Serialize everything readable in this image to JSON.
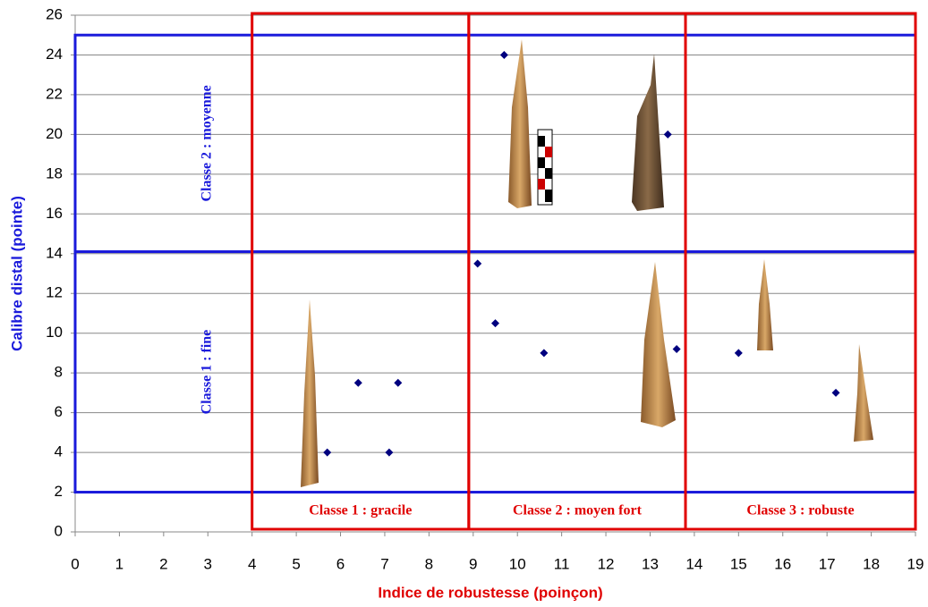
{
  "chart_data": {
    "type": "scatter",
    "xlabel": "Indice de robustesse (poinçon)",
    "ylabel": "Calibre distal (pointe)",
    "x": [
      9.7,
      13.4,
      9.1,
      9.5,
      10.6,
      13.6,
      15,
      17.2,
      5.7,
      6.4,
      7.1,
      7.3
    ],
    "values": [
      24,
      20,
      13.5,
      10.5,
      9,
      9.2,
      9,
      7,
      4,
      7.5,
      4,
      7.5
    ],
    "color": "#00007f",
    "xlim": [
      0,
      19
    ],
    "xticks": [
      0,
      1,
      2,
      3,
      4,
      5,
      6,
      7,
      8,
      9,
      10,
      11,
      12,
      13,
      14,
      15,
      16,
      17,
      18,
      19
    ],
    "ylim": [
      0,
      26
    ],
    "yticks": [
      0,
      2,
      4,
      6,
      8,
      10,
      12,
      14,
      16,
      18,
      20,
      22,
      24,
      26
    ],
    "grid": true,
    "x_classes": [
      {
        "label": "Classe 1 : gracile",
        "from": 4,
        "to": 8.9
      },
      {
        "label": "Classe 2 : moyen fort",
        "from": 8.9,
        "to": 13.8
      },
      {
        "label": "Classe 3 : robuste",
        "from": 13.8,
        "to": 19
      }
    ],
    "y_classes": [
      {
        "label": "Classe 1 : fine",
        "from": 2,
        "to": 14.1
      },
      {
        "label": "Classe 2 : moyenne",
        "from": 14.1,
        "to": 25
      }
    ]
  }
}
